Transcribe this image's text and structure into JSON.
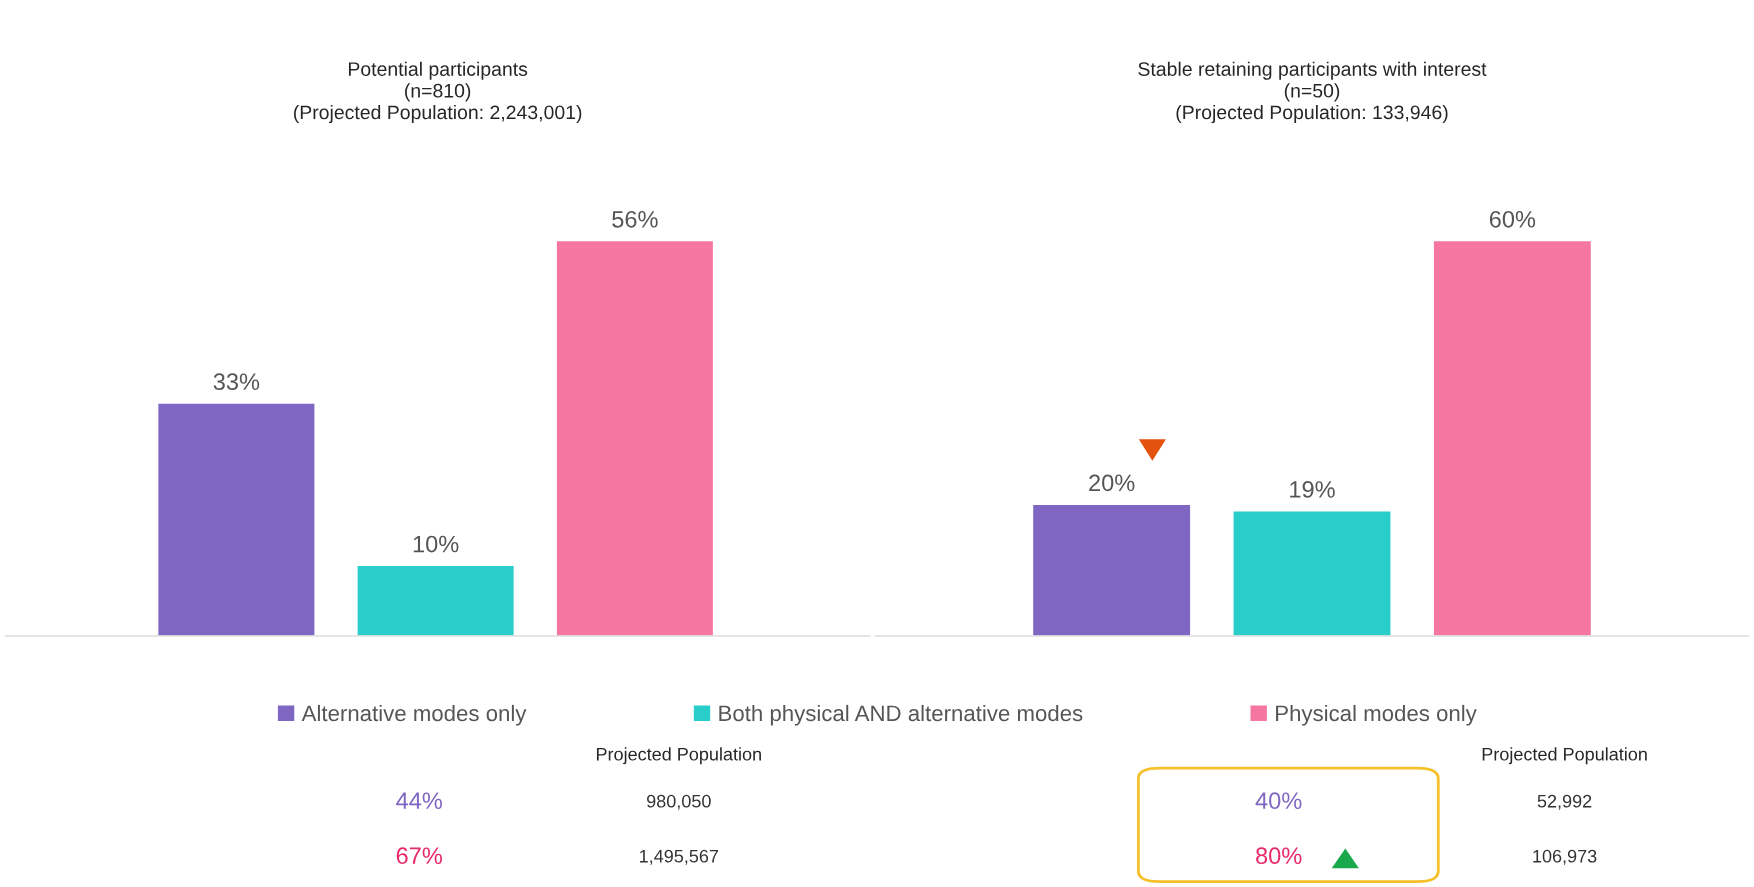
{
  "chart_data": [
    {
      "type": "bar",
      "title": "Potential participants\n(n=810)\n(Projected Population: 2,243,001)",
      "categories": [
        null
      ],
      "series": [
        {
          "name": "Alternative modes only",
          "color": "#7e66c2",
          "values": [
            33
          ],
          "value_labels": [
            "33%"
          ]
        },
        {
          "name": "Both physical AND alternative modes",
          "color": "#29cdc9",
          "values": [
            10
          ],
          "value_labels": [
            "10%"
          ]
        },
        {
          "name": "Physical modes only",
          "color": "#f476a1",
          "values": [
            56
          ],
          "value_labels": [
            "56%"
          ]
        }
      ],
      "legend": "bottom",
      "annotations": [
        "Projected Population",
        "44%",
        "980,050",
        "67%",
        "1,495,567"
      ]
    },
    {
      "type": "bar",
      "title": "Stable retaining participants with interest\n(n=50)\n(Projected Population: 133,946)",
      "categories": [
        null
      ],
      "series": [
        {
          "name": "Alternative modes only",
          "color": "#7e66c2",
          "values": [
            20
          ],
          "value_labels": [
            "20%"
          ]
        },
        {
          "name": "Both physical AND alternative modes",
          "color": "#29cdc9",
          "values": [
            19
          ],
          "value_labels": [
            "19%"
          ]
        },
        {
          "name": "Physical modes only",
          "color": "#f476a1",
          "values": [
            60
          ],
          "value_labels": [
            "60%"
          ]
        }
      ],
      "annotations": [
        "Projected Population",
        "40%",
        "52,992",
        "80%",
        "106,973"
      ]
    }
  ]
}
